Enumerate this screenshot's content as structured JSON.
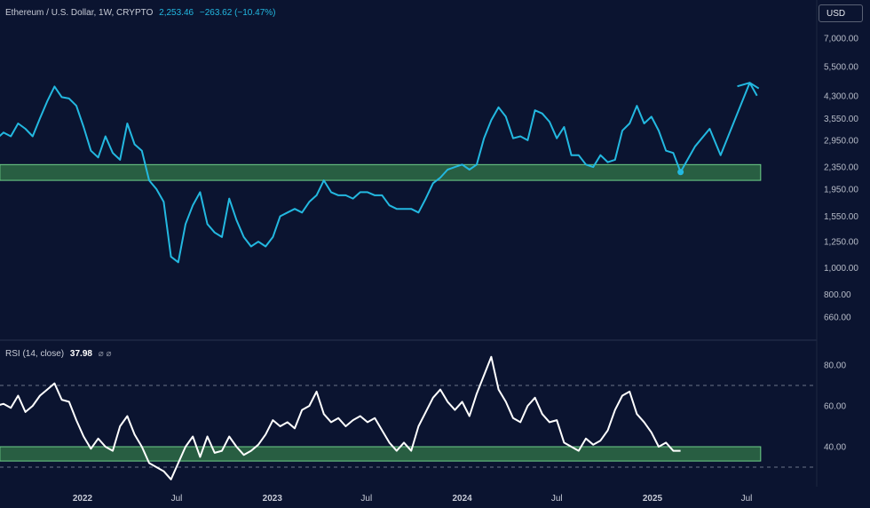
{
  "header": {
    "symbol": "Ethereum / U.S. Dollar, 1W, CRYPTO",
    "price": "2,253.46",
    "change": "−263.62 (−10.47%)"
  },
  "currency_button": "USD",
  "rsi_header": {
    "label": "RSI (14, close)",
    "value": "37.98",
    "icons": "⌀ ⌀"
  },
  "colors": {
    "background": "#0b1430",
    "price_line": "#23b8e0",
    "rsi_line": "#ffffff",
    "support_zone": "#2e6b45",
    "support_border": "#6fd08a"
  },
  "chart_data": [
    {
      "type": "line",
      "name": "price",
      "y_scale": "log",
      "y_ticks": [
        "7,000.00",
        "5,500.00",
        "4,300.00",
        "3,550.00",
        "2,950.00",
        "2,350.00",
        "1,950.00",
        "1,550.00",
        "1,250.00",
        "1,000.00",
        "800.00",
        "660.00"
      ],
      "y_tick_values": [
        7000,
        5500,
        4300,
        3550,
        2950,
        2350,
        1950,
        1550,
        1250,
        1000,
        800,
        660
      ],
      "x_ticks": [
        "2022",
        "Jul",
        "2023",
        "Jul",
        "2024",
        "Jul",
        "2025",
        "Jul"
      ],
      "x_tick_dates": [
        "2022-01-01",
        "2022-07-01",
        "2023-01-01",
        "2023-07-01",
        "2024-01-01",
        "2024-07-01",
        "2025-01-01",
        "2025-07-01"
      ],
      "support_zone": {
        "y_low": 2100,
        "y_high": 2400,
        "x_start": "2021-07-26",
        "x_end": "2025-07-28"
      },
      "series": [
        {
          "points": [
            [
              "2021-07-05",
              2350
            ],
            [
              "2021-07-19",
              2980
            ],
            [
              "2021-08-02",
              3150
            ],
            [
              "2021-08-16",
              3050
            ],
            [
              "2021-08-30",
              3400
            ],
            [
              "2021-09-13",
              3250
            ],
            [
              "2021-09-27",
              3050
            ],
            [
              "2021-10-11",
              3550
            ],
            [
              "2021-10-25",
              4100
            ],
            [
              "2021-11-08",
              4650
            ],
            [
              "2021-11-22",
              4250
            ],
            [
              "2021-12-06",
              4200
            ],
            [
              "2021-12-20",
              3950
            ],
            [
              "2022-01-03",
              3300
            ],
            [
              "2022-01-17",
              2700
            ],
            [
              "2022-01-31",
              2550
            ],
            [
              "2022-02-14",
              3050
            ],
            [
              "2022-02-28",
              2650
            ],
            [
              "2022-03-14",
              2500
            ],
            [
              "2022-03-28",
              3400
            ],
            [
              "2022-04-11",
              2850
            ],
            [
              "2022-04-25",
              2700
            ],
            [
              "2022-05-09",
              2100
            ],
            [
              "2022-05-23",
              1950
            ],
            [
              "2022-06-06",
              1750
            ],
            [
              "2022-06-20",
              1100
            ],
            [
              "2022-07-04",
              1050
            ],
            [
              "2022-07-18",
              1450
            ],
            [
              "2022-08-01",
              1700
            ],
            [
              "2022-08-15",
              1900
            ],
            [
              "2022-08-29",
              1450
            ],
            [
              "2022-09-12",
              1350
            ],
            [
              "2022-09-26",
              1300
            ],
            [
              "2022-10-10",
              1800
            ],
            [
              "2022-10-24",
              1500
            ],
            [
              "2022-11-07",
              1300
            ],
            [
              "2022-11-21",
              1200
            ],
            [
              "2022-12-05",
              1250
            ],
            [
              "2022-12-19",
              1200
            ],
            [
              "2023-01-02",
              1300
            ],
            [
              "2023-01-16",
              1550
            ],
            [
              "2023-01-30",
              1600
            ],
            [
              "2023-02-13",
              1650
            ],
            [
              "2023-02-27",
              1600
            ],
            [
              "2023-03-13",
              1750
            ],
            [
              "2023-03-27",
              1850
            ],
            [
              "2023-04-10",
              2100
            ],
            [
              "2023-04-24",
              1900
            ],
            [
              "2023-05-08",
              1850
            ],
            [
              "2023-05-22",
              1850
            ],
            [
              "2023-06-05",
              1800
            ],
            [
              "2023-06-19",
              1900
            ],
            [
              "2023-07-03",
              1900
            ],
            [
              "2023-07-17",
              1850
            ],
            [
              "2023-07-31",
              1850
            ],
            [
              "2023-08-14",
              1700
            ],
            [
              "2023-08-28",
              1650
            ],
            [
              "2023-09-11",
              1650
            ],
            [
              "2023-09-25",
              1650
            ],
            [
              "2023-10-09",
              1600
            ],
            [
              "2023-10-23",
              1800
            ],
            [
              "2023-11-06",
              2050
            ],
            [
              "2023-11-20",
              2150
            ],
            [
              "2023-12-04",
              2300
            ],
            [
              "2023-12-18",
              2350
            ],
            [
              "2024-01-01",
              2400
            ],
            [
              "2024-01-15",
              2300
            ],
            [
              "2024-01-29",
              2400
            ],
            [
              "2024-02-12",
              3000
            ],
            [
              "2024-02-26",
              3500
            ],
            [
              "2024-03-11",
              3900
            ],
            [
              "2024-03-25",
              3600
            ],
            [
              "2024-04-08",
              3000
            ],
            [
              "2024-04-22",
              3050
            ],
            [
              "2024-05-06",
              2950
            ],
            [
              "2024-05-20",
              3800
            ],
            [
              "2024-06-03",
              3700
            ],
            [
              "2024-06-17",
              3450
            ],
            [
              "2024-07-01",
              3000
            ],
            [
              "2024-07-15",
              3300
            ],
            [
              "2024-07-29",
              2600
            ],
            [
              "2024-08-12",
              2600
            ],
            [
              "2024-08-26",
              2400
            ],
            [
              "2024-09-09",
              2350
            ],
            [
              "2024-09-23",
              2600
            ],
            [
              "2024-10-07",
              2450
            ],
            [
              "2024-10-21",
              2500
            ],
            [
              "2024-11-04",
              3200
            ],
            [
              "2024-11-18",
              3400
            ],
            [
              "2024-12-02",
              3950
            ],
            [
              "2024-12-16",
              3400
            ],
            [
              "2024-12-30",
              3600
            ],
            [
              "2025-01-13",
              3200
            ],
            [
              "2025-01-27",
              2700
            ],
            [
              "2025-02-10",
              2650
            ],
            [
              "2025-02-24",
              2253.46
            ],
            [
              "2025-03-24",
              2800
            ],
            [
              "2025-04-21",
              3250
            ],
            [
              "2025-05-12",
              2600
            ],
            [
              "2025-07-07",
              4800
            ],
            [
              "2025-07-21",
              4300
            ]
          ]
        }
      ]
    },
    {
      "type": "line",
      "name": "RSI (14, close)",
      "y_ticks": [
        "80.00",
        "60.00",
        "40.00"
      ],
      "y_tick_values": [
        80,
        60,
        40
      ],
      "reference_lines": [
        70,
        30
      ],
      "support_zone": {
        "y_low": 33,
        "y_high": 40,
        "x_start": "2021-07-26",
        "x_end": "2025-07-28"
      },
      "series": [
        {
          "points": [
            [
              "2021-07-05",
              55
            ],
            [
              "2021-07-19",
              60
            ],
            [
              "2021-08-02",
              61
            ],
            [
              "2021-08-16",
              59
            ],
            [
              "2021-08-30",
              65
            ],
            [
              "2021-09-13",
              57
            ],
            [
              "2021-09-27",
              60
            ],
            [
              "2021-10-11",
              65
            ],
            [
              "2021-10-25",
              68
            ],
            [
              "2021-11-08",
              71
            ],
            [
              "2021-11-22",
              63
            ],
            [
              "2021-12-06",
              62
            ],
            [
              "2021-12-20",
              53
            ],
            [
              "2022-01-03",
              45
            ],
            [
              "2022-01-17",
              39
            ],
            [
              "2022-01-31",
              44
            ],
            [
              "2022-02-14",
              40
            ],
            [
              "2022-02-28",
              38
            ],
            [
              "2022-03-14",
              50
            ],
            [
              "2022-03-28",
              55
            ],
            [
              "2022-04-11",
              46
            ],
            [
              "2022-04-25",
              40
            ],
            [
              "2022-05-09",
              32
            ],
            [
              "2022-05-23",
              30
            ],
            [
              "2022-06-06",
              28
            ],
            [
              "2022-06-20",
              24
            ],
            [
              "2022-07-04",
              32
            ],
            [
              "2022-07-18",
              40
            ],
            [
              "2022-08-01",
              45
            ],
            [
              "2022-08-15",
              35
            ],
            [
              "2022-08-29",
              45
            ],
            [
              "2022-09-12",
              37
            ],
            [
              "2022-09-26",
              38
            ],
            [
              "2022-10-10",
              45
            ],
            [
              "2022-10-24",
              40
            ],
            [
              "2022-11-07",
              36
            ],
            [
              "2022-11-21",
              38
            ],
            [
              "2022-12-05",
              41
            ],
            [
              "2022-12-19",
              46
            ],
            [
              "2023-01-02",
              53
            ],
            [
              "2023-01-16",
              50
            ],
            [
              "2023-01-30",
              52
            ],
            [
              "2023-02-13",
              49
            ],
            [
              "2023-02-27",
              58
            ],
            [
              "2023-03-13",
              60
            ],
            [
              "2023-03-27",
              67
            ],
            [
              "2023-04-10",
              56
            ],
            [
              "2023-04-24",
              52
            ],
            [
              "2023-05-08",
              54
            ],
            [
              "2023-05-22",
              50
            ],
            [
              "2023-06-05",
              53
            ],
            [
              "2023-06-19",
              55
            ],
            [
              "2023-07-03",
              52
            ],
            [
              "2023-07-17",
              54
            ],
            [
              "2023-07-31",
              48
            ],
            [
              "2023-08-14",
              42
            ],
            [
              "2023-08-28",
              38
            ],
            [
              "2023-09-11",
              42
            ],
            [
              "2023-09-25",
              38
            ],
            [
              "2023-10-09",
              50
            ],
            [
              "2023-10-23",
              57
            ],
            [
              "2023-11-06",
              64
            ],
            [
              "2023-11-20",
              68
            ],
            [
              "2023-12-04",
              62
            ],
            [
              "2023-12-18",
              58
            ],
            [
              "2024-01-01",
              62
            ],
            [
              "2024-01-15",
              55
            ],
            [
              "2024-01-29",
              66
            ],
            [
              "2024-02-12",
              75
            ],
            [
              "2024-02-26",
              84
            ],
            [
              "2024-03-11",
              68
            ],
            [
              "2024-03-25",
              62
            ],
            [
              "2024-04-08",
              54
            ],
            [
              "2024-04-22",
              52
            ],
            [
              "2024-05-06",
              60
            ],
            [
              "2024-05-20",
              64
            ],
            [
              "2024-06-03",
              56
            ],
            [
              "2024-06-17",
              52
            ],
            [
              "2024-07-01",
              53
            ],
            [
              "2024-07-15",
              42
            ],
            [
              "2024-07-29",
              40
            ],
            [
              "2024-08-12",
              38
            ],
            [
              "2024-08-26",
              44
            ],
            [
              "2024-09-09",
              41
            ],
            [
              "2024-09-23",
              43
            ],
            [
              "2024-10-07",
              48
            ],
            [
              "2024-10-21",
              58
            ],
            [
              "2024-11-04",
              65
            ],
            [
              "2024-11-18",
              67
            ],
            [
              "2024-12-02",
              56
            ],
            [
              "2024-12-16",
              52
            ],
            [
              "2024-12-30",
              47
            ],
            [
              "2025-01-13",
              40
            ],
            [
              "2025-01-27",
              42
            ],
            [
              "2025-02-10",
              38
            ],
            [
              "2025-02-24",
              37.98
            ]
          ]
        }
      ]
    }
  ]
}
